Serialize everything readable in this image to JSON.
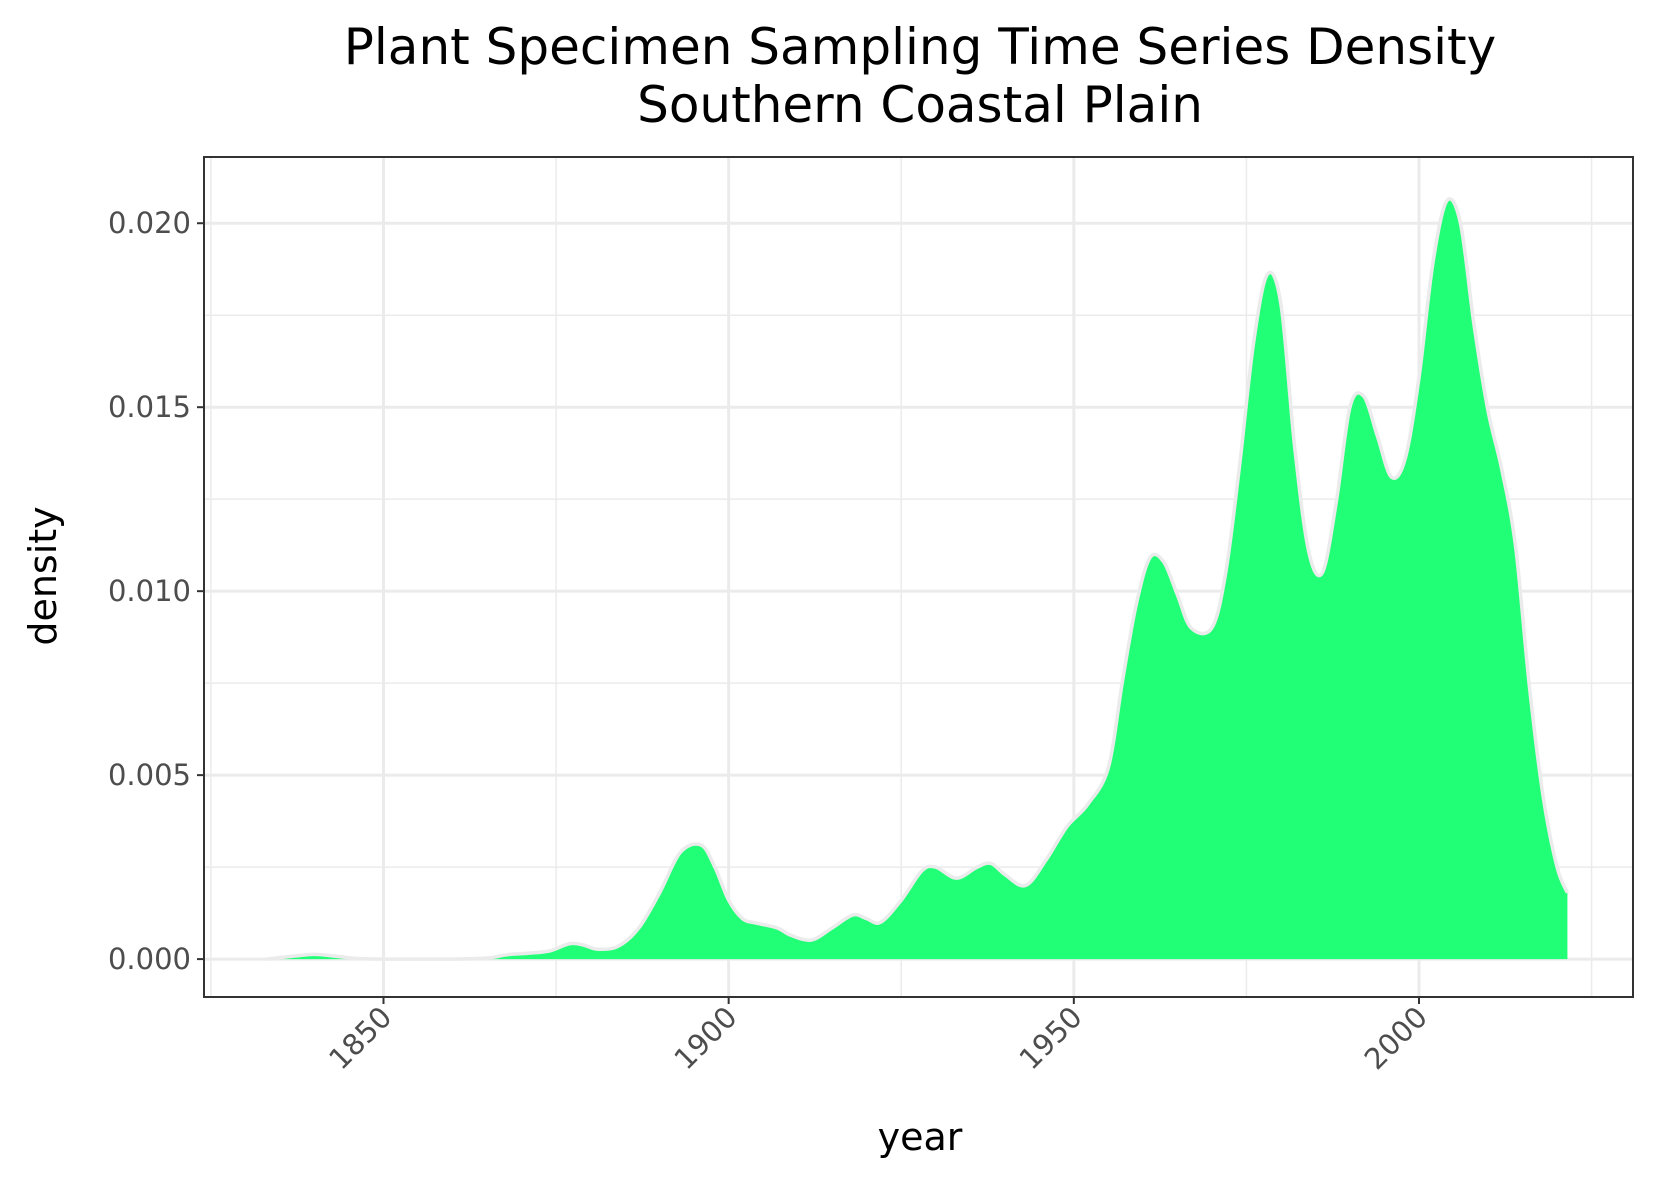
{
  "chart_data": {
    "type": "area",
    "title": "Plant Specimen Sampling Time Series Density",
    "subtitle": "Southern Coastal Plain",
    "xlabel": "year",
    "ylabel": "density",
    "xlim": [
      1824,
      2031
    ],
    "ylim": [
      -0.00103,
      0.0218
    ],
    "x_ticks": [
      1850,
      1900,
      1950,
      2000
    ],
    "x_tick_labels": [
      "1850",
      "1900",
      "1950",
      "2000"
    ],
    "x_minor_ticks": [
      1825,
      1875,
      1925,
      1975,
      2025
    ],
    "y_ticks": [
      0,
      0.005,
      0.01,
      0.015,
      0.02
    ],
    "y_tick_labels": [
      "0.000",
      "0.005",
      "0.010",
      "0.015",
      "0.020"
    ],
    "y_minor_ticks": [
      0.0025,
      0.0075,
      0.0125,
      0.0175
    ],
    "grid": true,
    "fill_color": "#21ff77",
    "outline_color": "#ebebeb",
    "series": [
      {
        "x": [
          1833,
          1837,
          1840,
          1843,
          1846,
          1850,
          1855,
          1860,
          1865,
          1868,
          1871,
          1874,
          1877,
          1879,
          1881,
          1884,
          1887,
          1890,
          1893,
          1896,
          1898,
          1900,
          1902,
          1904,
          1907,
          1909,
          1912,
          1915,
          1918,
          1920,
          1922,
          1925,
          1928,
          1930,
          1933,
          1936,
          1938,
          1940,
          1943,
          1946,
          1949,
          1952,
          1955,
          1957,
          1959,
          1961,
          1963,
          1965,
          1967,
          1970,
          1972,
          1974,
          1976,
          1978,
          1980,
          1982,
          1984,
          1986,
          1988,
          1990,
          1992,
          1994,
          1996,
          1998,
          2000,
          2002,
          2004,
          2006,
          2008,
          2010,
          2012,
          2014,
          2016,
          2018,
          2020,
          2021.5
        ],
        "values": [
          0.0,
          8e-05,
          0.00013,
          8e-05,
          2e-05,
          0.0,
          0.0,
          0.0,
          3e-05,
          0.00012,
          0.00016,
          0.00022,
          0.00042,
          0.00038,
          0.00027,
          0.00035,
          0.00085,
          0.0018,
          0.0029,
          0.0031,
          0.0025,
          0.0016,
          0.0011,
          0.00098,
          0.00085,
          0.00065,
          0.00052,
          0.00085,
          0.0012,
          0.0011,
          0.001,
          0.0016,
          0.0024,
          0.0025,
          0.0022,
          0.0025,
          0.0026,
          0.0023,
          0.002,
          0.0027,
          0.0036,
          0.0042,
          0.0052,
          0.0075,
          0.0096,
          0.0109,
          0.0108,
          0.0099,
          0.009,
          0.009,
          0.0105,
          0.0134,
          0.0167,
          0.0186,
          0.0178,
          0.0139,
          0.0111,
          0.0105,
          0.0124,
          0.015,
          0.0153,
          0.0142,
          0.0131,
          0.0136,
          0.0158,
          0.0189,
          0.0206,
          0.02,
          0.0172,
          0.0149,
          0.0133,
          0.0112,
          0.0074,
          0.0044,
          0.0025,
          0.0018
        ]
      }
    ]
  }
}
